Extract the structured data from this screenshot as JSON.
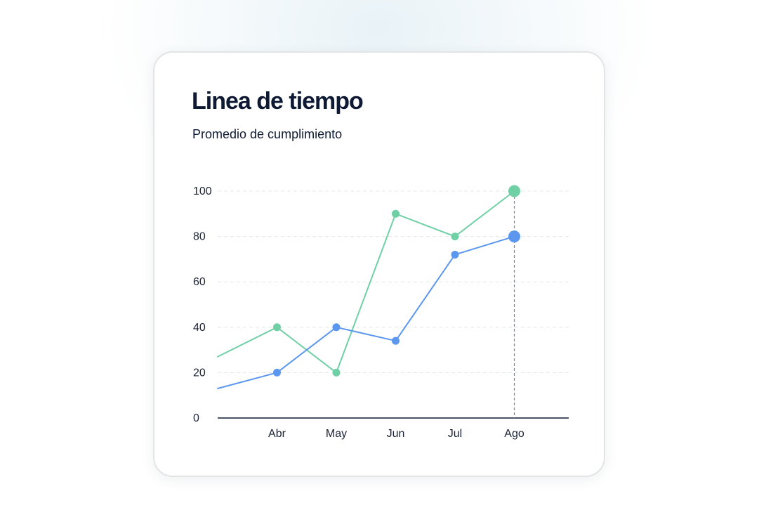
{
  "card": {
    "title": "Linea de tiempo",
    "subtitle": "Promedio de cumplimiento"
  },
  "colors": {
    "series_green": "#6fd0a6",
    "series_blue": "#5b97ee",
    "grid": "#e3e7ea",
    "axis": "#0e1a33",
    "text": "#0e1a33",
    "marker_line": "#7a7f87"
  },
  "chart_data": {
    "type": "line",
    "title": "Linea de tiempo",
    "subtitle": "Promedio de cumplimiento",
    "xlabel": "",
    "ylabel": "",
    "categories": [
      "Abr",
      "May",
      "Jun",
      "Jul",
      "Ago"
    ],
    "ylim": [
      0,
      100
    ],
    "yticks": [
      0,
      20,
      40,
      60,
      80,
      100
    ],
    "grid": true,
    "legend": "none",
    "series": [
      {
        "color": "#6fd0a6",
        "lead_in": 27,
        "values": [
          40,
          20,
          90,
          80,
          100
        ]
      },
      {
        "color": "#5b97ee",
        "lead_in": 13,
        "values": [
          20,
          40,
          34,
          72,
          80
        ]
      }
    ],
    "highlight_category": "Ago"
  }
}
